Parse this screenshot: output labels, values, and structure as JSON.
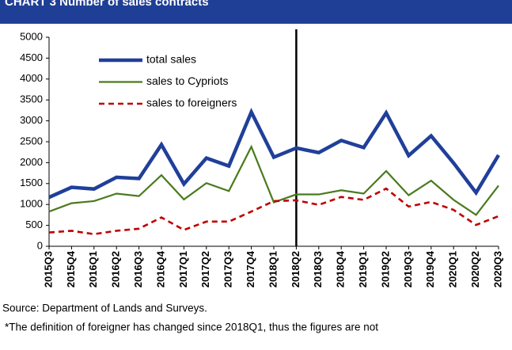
{
  "chart_data": {
    "type": "line",
    "title": "CHART 3 Number of sales contracts",
    "categories": [
      "2015Q3",
      "2015Q4",
      "2016Q1",
      "2016Q2",
      "2016Q3",
      "2016Q4",
      "2017Q1",
      "2017Q2",
      "2017Q3",
      "2017Q4",
      "2018Q1",
      "2018Q2",
      "2018Q3",
      "2018Q4",
      "2019Q1",
      "2019Q2",
      "2019Q3",
      "2019Q4",
      "2020Q1",
      "2020Q2",
      "2020Q3"
    ],
    "series": [
      {
        "name": "total sales",
        "color": "#203f9a",
        "width": 4.5,
        "dashed": false,
        "values": [
          1170,
          1410,
          1370,
          1650,
          1620,
          2430,
          1490,
          2110,
          1920,
          3210,
          2130,
          2350,
          2240,
          2530,
          2360,
          3190,
          2170,
          2640,
          1990,
          1280,
          2180
        ]
      },
      {
        "name": "sales to Cypriots",
        "color": "#4a7a1e",
        "width": 2.2,
        "dashed": false,
        "values": [
          830,
          1030,
          1080,
          1260,
          1200,
          1700,
          1120,
          1510,
          1320,
          2380,
          1050,
          1240,
          1240,
          1340,
          1260,
          1800,
          1220,
          1570,
          1110,
          750,
          1450
        ]
      },
      {
        "name": "sales to foreigners",
        "color": "#c00000",
        "width": 2.6,
        "dashed": true,
        "values": [
          330,
          370,
          290,
          370,
          420,
          690,
          390,
          590,
          590,
          830,
          1080,
          1100,
          990,
          1180,
          1110,
          1380,
          950,
          1060,
          870,
          510,
          720
        ]
      }
    ],
    "ylim": [
      0,
      5000
    ],
    "yticks": [
      0,
      500,
      1000,
      1500,
      2000,
      2500,
      3000,
      3500,
      4000,
      4500,
      5000
    ],
    "vertical_line": "2018Q2",
    "grid": false,
    "legend": "top-left",
    "source": "Source: Department of Lands and Surveys.",
    "footnote": "*The definition of foreigner has changed since 2018Q1, thus the figures are not"
  }
}
